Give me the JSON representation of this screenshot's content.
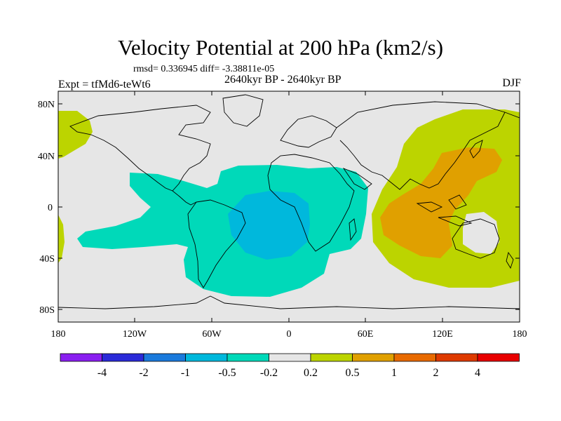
{
  "title": "Velocity Potential at 200 hPa (km2/s)",
  "stats": "rmsd= 0.336945 diff= -3.38811e-05",
  "experiment": "Expt = tfMd6-teWt6",
  "period": "2640kyr BP - 2640kyr BP",
  "season": "DJF",
  "map": {
    "projection": "cylindrical equidistant",
    "lon_range": [
      -180,
      180
    ],
    "lat_range": [
      -90,
      90
    ],
    "x_tick_labels": [
      "180",
      "120W",
      "60W",
      "0",
      "60E",
      "120E",
      "180"
    ],
    "y_tick_labels": [
      "80N",
      "40N",
      "0",
      "40S",
      "80S"
    ],
    "background_color": "#e6e6e6",
    "regions": [
      {
        "name": "central-pacific-positive",
        "level": "0.2 to 0.5",
        "color": "#bcd400"
      },
      {
        "name": "indo-pacific-positive",
        "level": "0.2 to 0.5",
        "color": "#bcd400"
      },
      {
        "name": "maritime-continent-max",
        "level": "0.5 to 1",
        "color": "#e0a000"
      },
      {
        "name": "atlantic-negative",
        "level": "-0.5 to -0.2",
        "color": "#00d9b9"
      },
      {
        "name": "south-atlantic-min",
        "level": "-1 to -0.5",
        "color": "#00b8dc"
      }
    ]
  },
  "colorbar": {
    "labels": [
      "-4",
      "-2",
      "-1",
      "-0.5",
      "-0.2",
      "0.2",
      "0.5",
      "1",
      "2",
      "4"
    ],
    "colors": [
      "#8a1ff0",
      "#2a2ad8",
      "#1a7adc",
      "#00b8dc",
      "#00d9b9",
      "#e6e6e6",
      "#bcd400",
      "#e0a000",
      "#e86a00",
      "#de3a00",
      "#e80000"
    ]
  }
}
